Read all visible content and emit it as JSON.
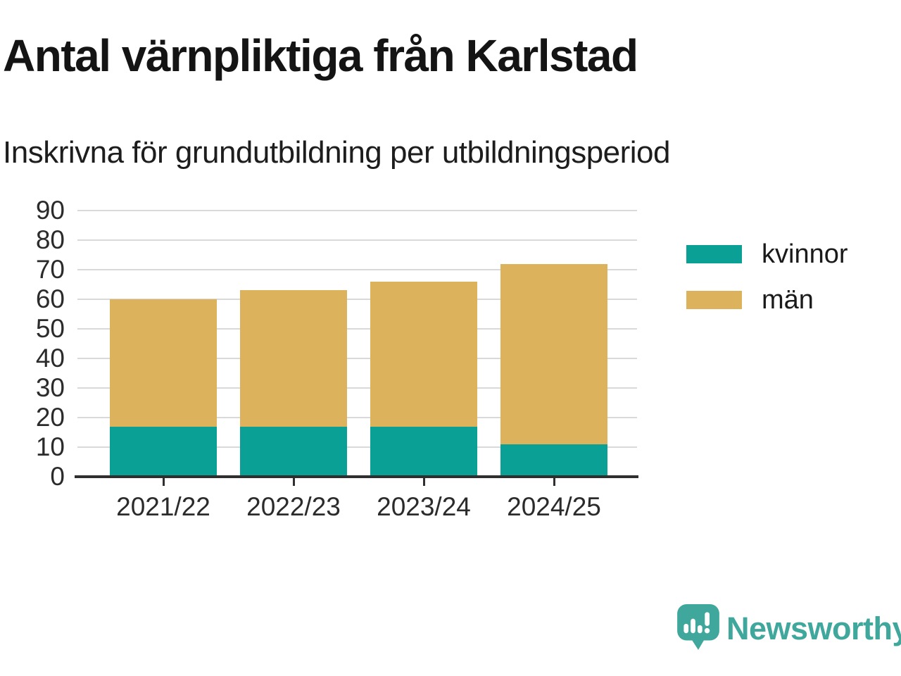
{
  "header": {
    "title": "Antal värnpliktiga från Karlstad",
    "subtitle": "Inskrivna för grundutbildning per utbildningsperiod"
  },
  "chart_data": {
    "type": "bar",
    "stacked": true,
    "title": "Antal värnpliktiga från Karlstad",
    "subtitle": "Inskrivna för grundutbildning per utbildningsperiod",
    "categories": [
      "2021/22",
      "2022/23",
      "2023/24",
      "2024/25"
    ],
    "series": [
      {
        "name": "kvinnor",
        "color": "#0aa096",
        "values": [
          17,
          17,
          17,
          11
        ]
      },
      {
        "name": "män",
        "color": "#ddb25c",
        "values": [
          43,
          46,
          49,
          61
        ]
      }
    ],
    "stack_totals": [
      60,
      63,
      66,
      72
    ],
    "ylim": [
      0,
      90
    ],
    "yticks": [
      0,
      10,
      20,
      30,
      40,
      50,
      60,
      70,
      80,
      90
    ],
    "grid": true,
    "legend_position": "right",
    "gridline_color": "#d9d9d9",
    "axis_color": "#2f2f2f"
  },
  "branding": {
    "logo_text": "Newsworthy",
    "logo_color": "#3fa79b"
  }
}
